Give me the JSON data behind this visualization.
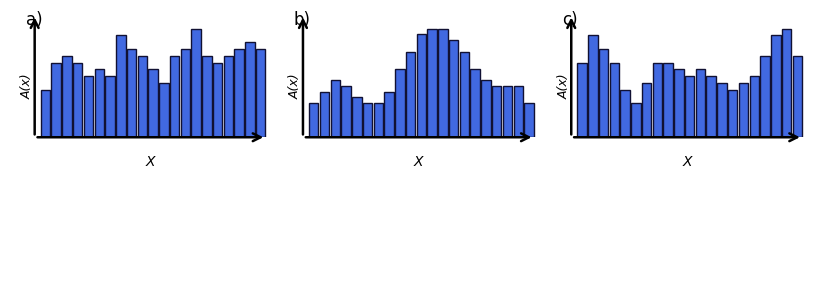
{
  "panel_a_bars": [
    3.5,
    5.5,
    6,
    5.5,
    4.5,
    5,
    4.5,
    7.5,
    6.5,
    6,
    5,
    4,
    6,
    6.5,
    8,
    6,
    5.5,
    6,
    6.5,
    7,
    6.5
  ],
  "panel_b_bars": [
    3,
    4,
    5,
    4.5,
    3.5,
    3,
    3,
    4,
    6,
    7.5,
    9,
    9.5,
    9.5,
    8.5,
    7.5,
    6,
    5,
    4.5,
    4.5,
    4.5,
    3
  ],
  "panel_c_bars": [
    5.5,
    7.5,
    6.5,
    5.5,
    3.5,
    2.5,
    4,
    5.5,
    5.5,
    5,
    4.5,
    5,
    4.5,
    4,
    3.5,
    4,
    4.5,
    6,
    7.5,
    8,
    6
  ],
  "bar_color": "#4169E1",
  "bar_edge_color": "#111133",
  "axis_label_x": "X",
  "axis_label_y": "A(x)",
  "panel_labels": [
    "a)",
    "b)",
    "c)"
  ],
  "background_color": "#ffffff",
  "label_fontsize": 10,
  "panel_label_fontsize": 12,
  "bar_linewidth": 1.0
}
